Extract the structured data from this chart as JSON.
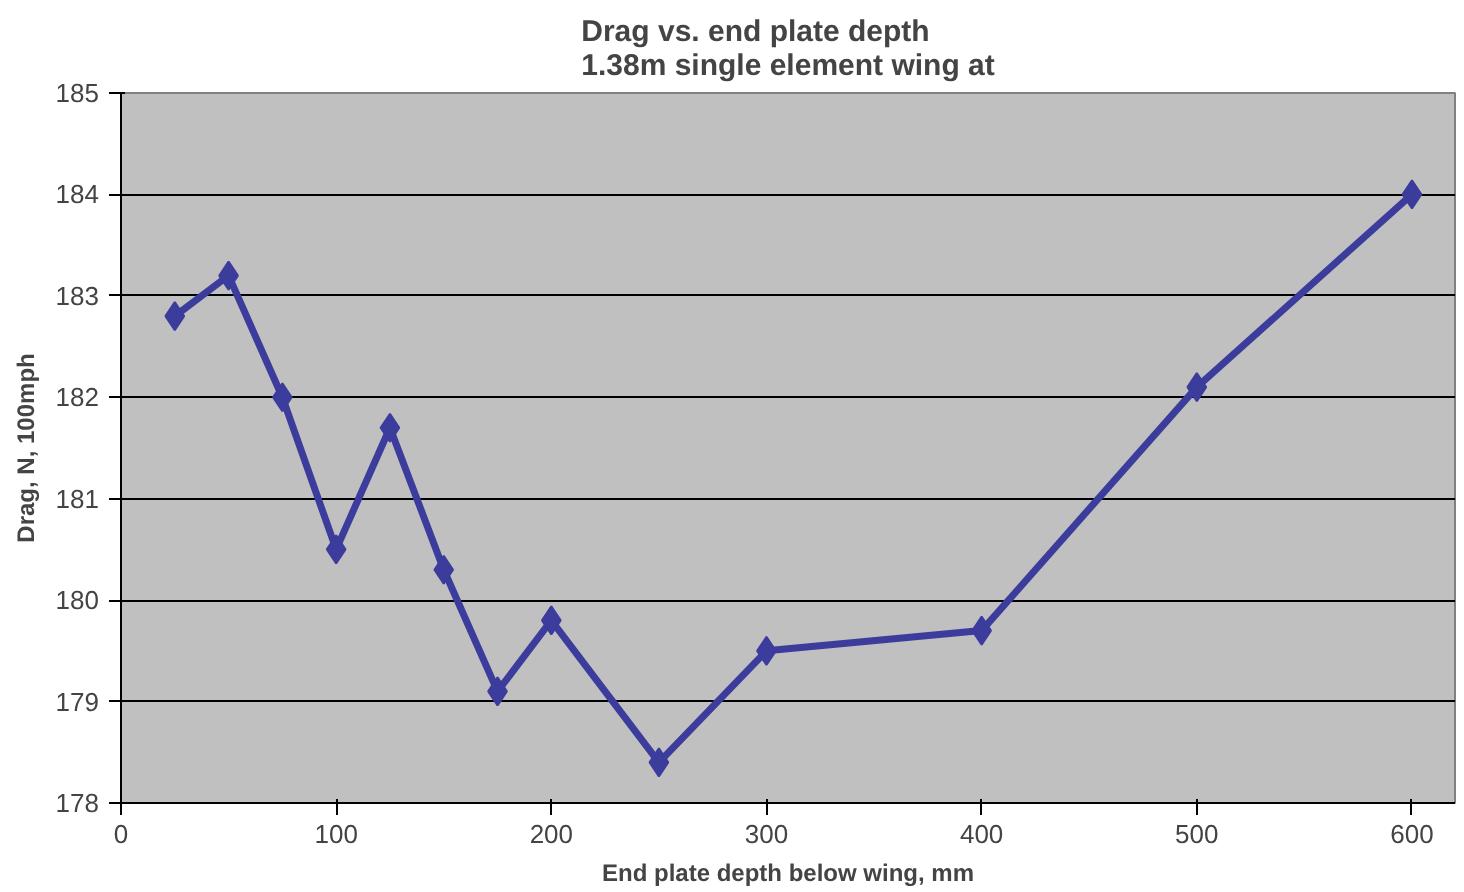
{
  "chart_data": {
    "type": "line",
    "title": "Drag vs. end plate depth\n1.38m single element wing at",
    "xlabel": "End plate depth below wing, mm",
    "ylabel": "Drag, N, 100mph",
    "x": [
      25,
      50,
      75,
      100,
      125,
      150,
      175,
      200,
      250,
      300,
      400,
      500,
      600
    ],
    "series": [
      {
        "color": "#3c3c9c",
        "values": [
          182.8,
          183.2,
          182.0,
          180.5,
          181.7,
          180.3,
          179.1,
          179.8,
          178.4,
          179.5,
          179.7,
          182.1,
          184.0
        ]
      }
    ],
    "xlim": [
      0,
      620
    ],
    "xticks": [
      0,
      100,
      200,
      300,
      400,
      500,
      600
    ],
    "ylim": [
      178,
      185
    ],
    "yticks": [
      178,
      179,
      180,
      181,
      182,
      183,
      184,
      185
    ],
    "grid": "y",
    "marker": "diamond",
    "line_style": "solid"
  }
}
